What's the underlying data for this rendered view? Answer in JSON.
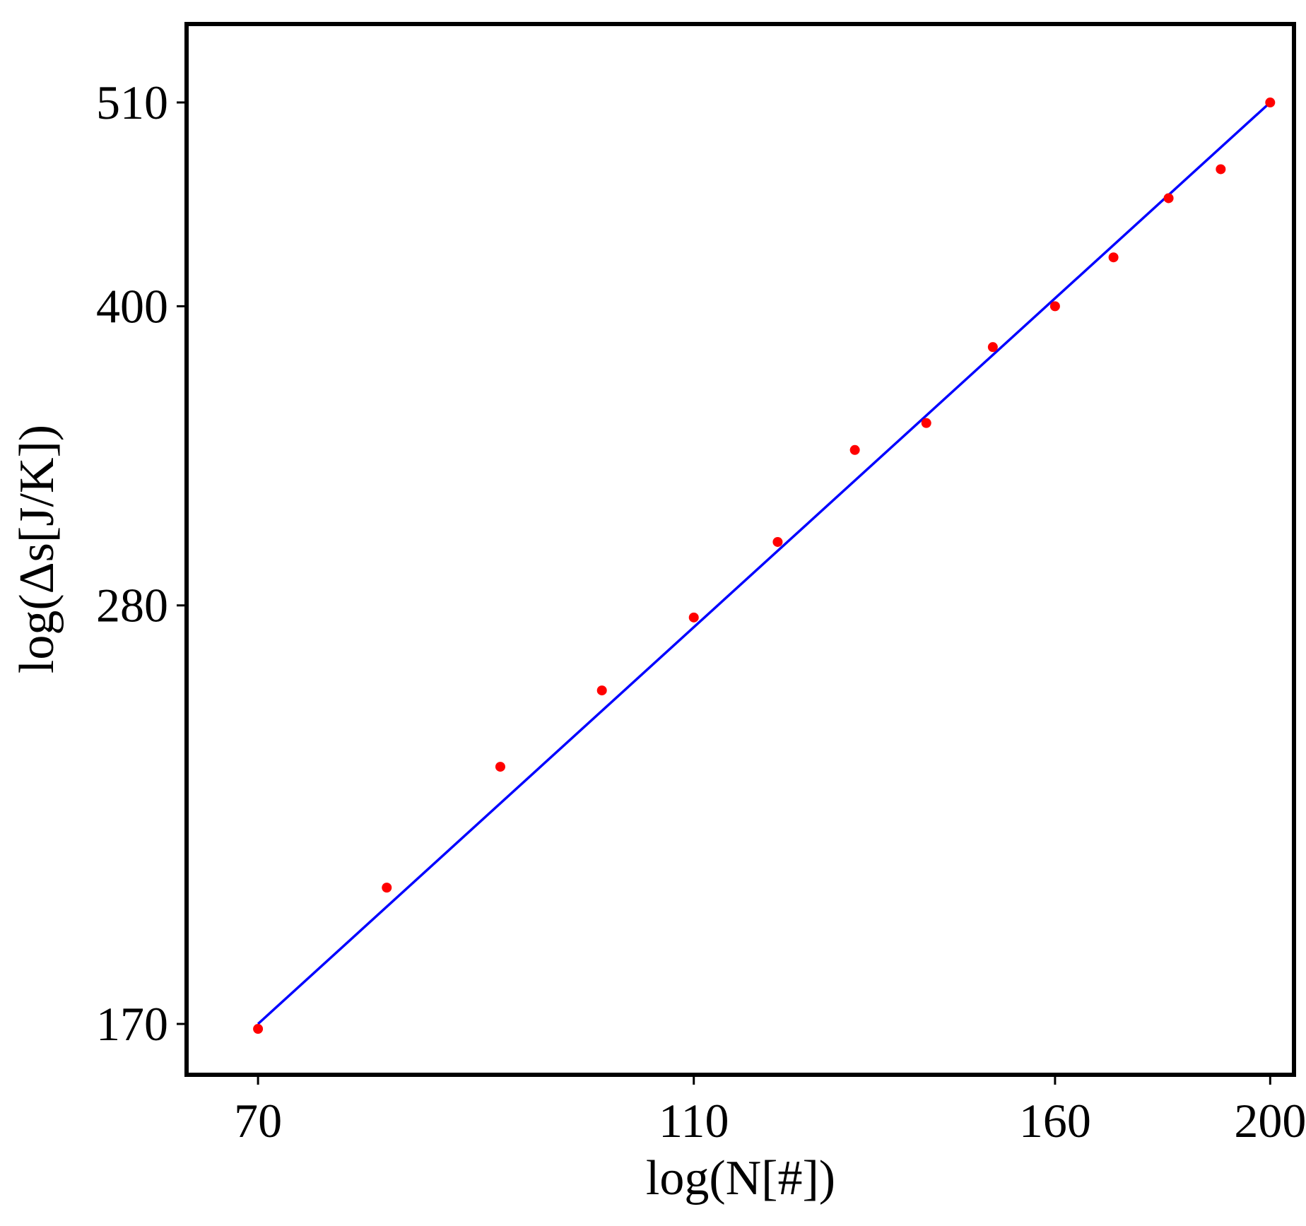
{
  "chart_data": {
    "type": "scatter",
    "title": "",
    "xlabel": "log(N[#])",
    "ylabel": "log(Δs[J/K])",
    "log_scale": {
      "x": true,
      "y": true
    },
    "xlim": [
      65,
      205
    ],
    "ylim": [
      160,
      560
    ],
    "x_ticks": [
      {
        "value": 70,
        "label": "70"
      },
      {
        "value": 110,
        "label": "110"
      },
      {
        "value": 160,
        "label": "160"
      },
      {
        "value": 200,
        "label": "200"
      }
    ],
    "y_ticks": [
      {
        "value": 170,
        "label": "170"
      },
      {
        "value": 280,
        "label": "280"
      },
      {
        "value": 400,
        "label": "400"
      },
      {
        "value": 510,
        "label": "510"
      }
    ],
    "grid": false,
    "legend": "none",
    "series": [
      {
        "kind": "points",
        "color": "#ff0000",
        "points": [
          {
            "x": 70,
            "y": 169
          },
          {
            "x": 80,
            "y": 200
          },
          {
            "x": 90,
            "y": 231
          },
          {
            "x": 100,
            "y": 253
          },
          {
            "x": 110,
            "y": 276
          },
          {
            "x": 120,
            "y": 302
          },
          {
            "x": 130,
            "y": 337
          },
          {
            "x": 140,
            "y": 348
          },
          {
            "x": 150,
            "y": 381
          },
          {
            "x": 160,
            "y": 400
          },
          {
            "x": 170,
            "y": 424
          },
          {
            "x": 180,
            "y": 455
          },
          {
            "x": 190,
            "y": 471
          },
          {
            "x": 200,
            "y": 510
          }
        ]
      },
      {
        "kind": "fit-line",
        "color": "#0000ff",
        "points": [
          {
            "x": 70,
            "y": 170
          },
          {
            "x": 200,
            "y": 510
          }
        ]
      }
    ]
  }
}
